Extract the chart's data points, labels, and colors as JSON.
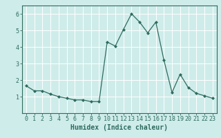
{
  "x": [
    0,
    1,
    2,
    3,
    4,
    5,
    6,
    7,
    8,
    9,
    10,
    11,
    12,
    13,
    14,
    15,
    16,
    17,
    18,
    19,
    20,
    21,
    22,
    23
  ],
  "y": [
    1.65,
    1.35,
    1.35,
    1.15,
    1.0,
    0.9,
    0.8,
    0.8,
    0.7,
    0.7,
    4.3,
    4.05,
    5.05,
    6.0,
    5.5,
    4.85,
    5.5,
    3.2,
    1.25,
    2.35,
    1.55,
    1.2,
    1.05,
    0.9
  ],
  "line_color": "#2e6b5e",
  "marker": "D",
  "marker_size": 2,
  "bg_color": "#ceecea",
  "grid_color": "#ffffff",
  "xlabel": "Humidex (Indice chaleur)",
  "ylim": [
    0,
    6.5
  ],
  "xlim": [
    -0.5,
    23.5
  ],
  "yticks": [
    1,
    2,
    3,
    4,
    5,
    6
  ],
  "xticks": [
    0,
    1,
    2,
    3,
    4,
    5,
    6,
    7,
    8,
    9,
    10,
    11,
    12,
    13,
    14,
    15,
    16,
    17,
    18,
    19,
    20,
    21,
    22,
    23
  ],
  "tick_fontsize": 6,
  "label_fontsize": 7
}
